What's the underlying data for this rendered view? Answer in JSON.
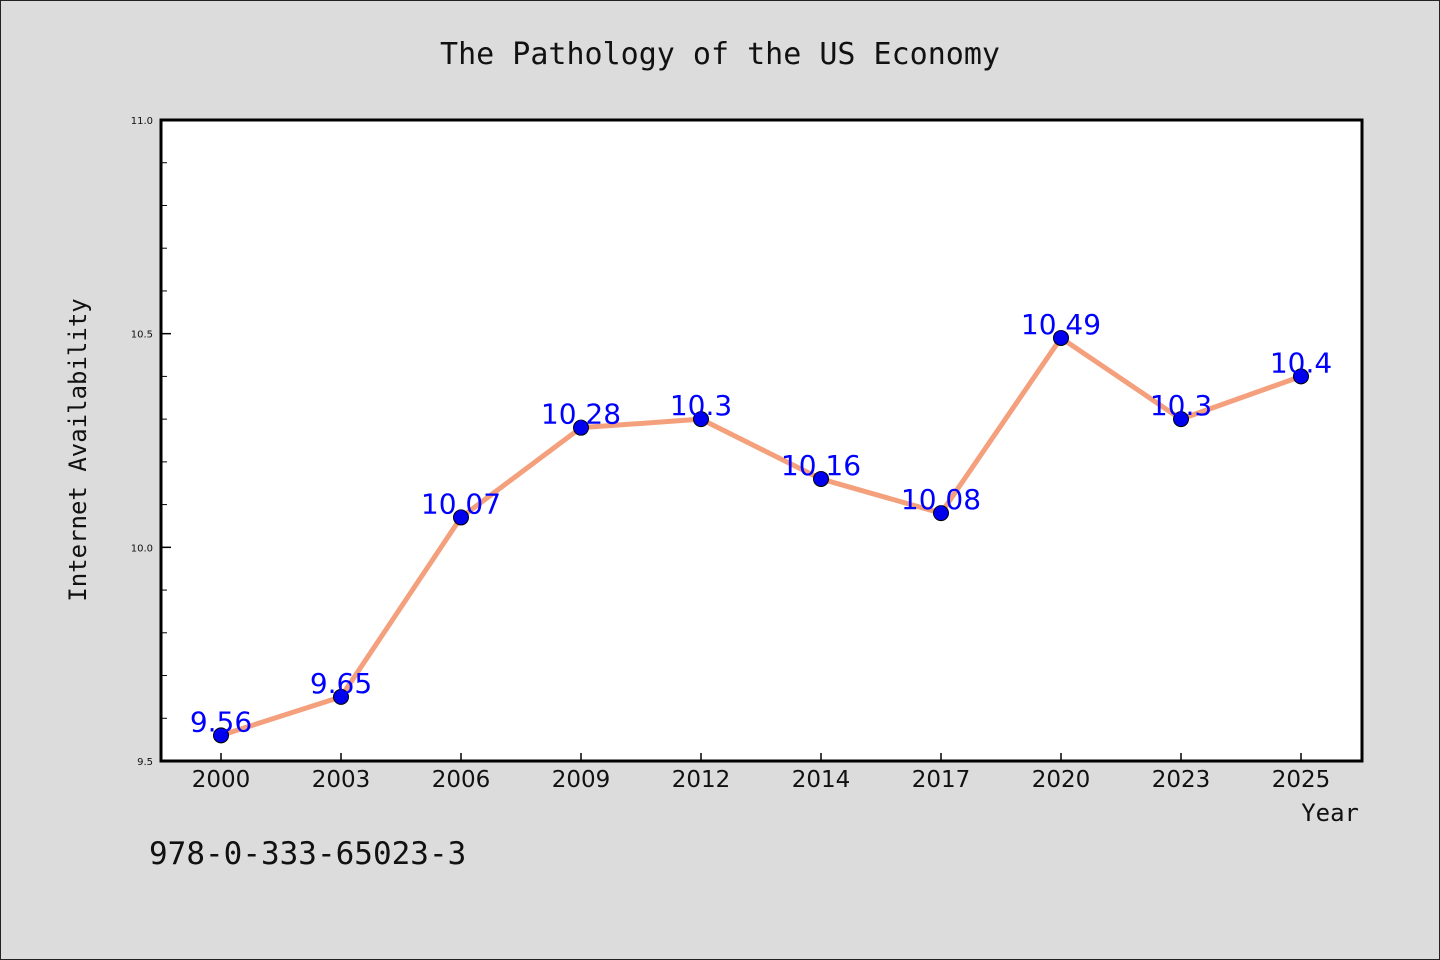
{
  "chart_data": {
    "type": "line",
    "title": "The Pathology of the US Economy",
    "xlabel": "Year",
    "ylabel": "Internet Availability",
    "categories": [
      "2000",
      "2003",
      "2006",
      "2009",
      "2012",
      "2014",
      "2017",
      "2020",
      "2023",
      "2025"
    ],
    "series": [
      {
        "values": [
          9.56,
          9.65,
          10.07,
          10.28,
          10.3,
          10.16,
          10.08,
          10.49,
          10.3,
          10.4
        ],
        "labels": [
          "9.56",
          "9.65",
          "10.07",
          "10.28",
          "10.3",
          "10.16",
          "10.08",
          "10.49",
          "10.3",
          "10.4"
        ],
        "line_color": "#f4a07c",
        "marker_color": "#0000ee",
        "label_color": "#0000ff"
      }
    ],
    "ylim": [
      9.5,
      11.0
    ],
    "yticks": [
      {
        "value": 9.5,
        "label": "9.5"
      },
      {
        "value": 10.0,
        "label": "10.0"
      },
      {
        "value": 10.5,
        "label": "10.5"
      },
      {
        "value": 11.0,
        "label": "11.0"
      }
    ],
    "y_minor_step": 0.1,
    "grid": false,
    "legend": "none"
  },
  "annotation": {
    "isbn": "978-0-333-65023-3"
  }
}
